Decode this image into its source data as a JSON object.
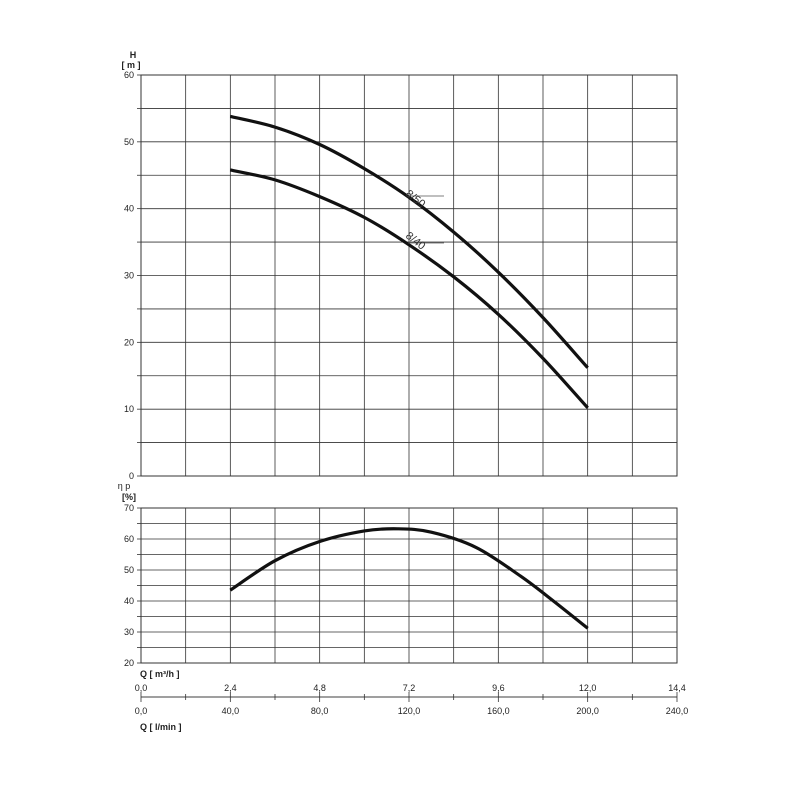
{
  "chart_data": [
    {
      "type": "line",
      "ylabel_symbol": "H",
      "ylabel_unit": "[ m ]",
      "ylim": [
        0,
        60
      ],
      "y_ticks": [
        "0",
        "10",
        "20",
        "30",
        "40",
        "50",
        "60"
      ],
      "xlim": [
        0,
        240
      ],
      "grid": true,
      "series": [
        {
          "name": "8/50",
          "x": [
            40,
            60,
            80,
            100,
            120,
            140,
            160,
            180,
            200
          ],
          "y": [
            53.8,
            52.2,
            49.6,
            46.0,
            41.7,
            36.5,
            30.5,
            23.7,
            16.2
          ]
        },
        {
          "name": "8/40",
          "x": [
            40,
            60,
            80,
            100,
            120,
            140,
            160,
            180,
            200
          ],
          "y": [
            45.8,
            44.3,
            41.8,
            38.7,
            34.6,
            29.8,
            24.2,
            17.6,
            10.2
          ]
        }
      ]
    },
    {
      "type": "line",
      "ylabel_symbol": "η p",
      "ylabel_unit": "[%]",
      "ylim": [
        20,
        70
      ],
      "y_ticks": [
        "20",
        "30",
        "40",
        "50",
        "60",
        "70"
      ],
      "xlim": [
        0,
        240
      ],
      "grid": true,
      "series": [
        {
          "x": [
            40,
            60,
            80,
            100,
            115,
            130,
            150,
            170,
            185,
            200
          ],
          "y": [
            43.5,
            53.0,
            59.2,
            62.6,
            63.3,
            62.2,
            57.3,
            48.0,
            39.8,
            31.2
          ]
        }
      ]
    }
  ],
  "x_axes": {
    "m3h": {
      "title": "Q [ m³/h ]",
      "ticks": [
        "0,0",
        "2,4",
        "4,8",
        "7,2",
        "9,6",
        "12,0",
        "14,4"
      ]
    },
    "lmin": {
      "title": "Q [ l/min ]",
      "ticks": [
        "0,0",
        "40,0",
        "80,0",
        "120,0",
        "160,0",
        "200,0",
        "240,0"
      ]
    }
  },
  "colors": {
    "curve": "#111111",
    "grid": "#333333",
    "text": "#222222"
  }
}
